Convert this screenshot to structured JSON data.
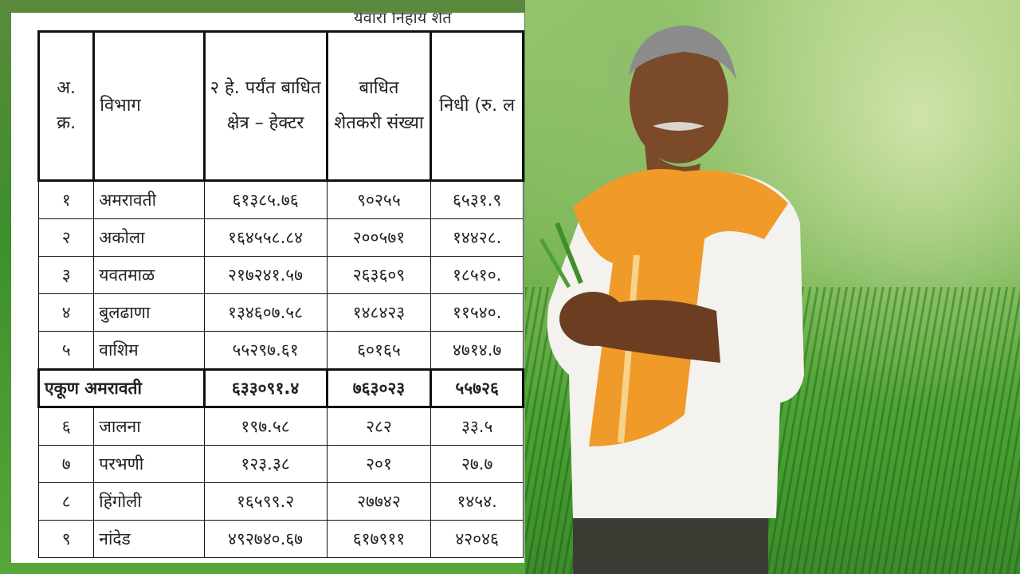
{
  "doc": {
    "top_text": "र्यवारा निहाय शेत"
  },
  "table": {
    "headers": {
      "sr": "अ. क्र.",
      "division": "विभाग",
      "area": "२ हे. पर्यंत बाधित क्षेत्र – हेक्टर",
      "farmers": "बाधित शेतकरी संख्या",
      "fund": "निधी (रु. ल"
    },
    "rows_a": [
      {
        "sr": "१",
        "division": "अमरावती",
        "area": "६१३८५.७६",
        "farmers": "९०२५५",
        "fund": "६५३१.९"
      },
      {
        "sr": "२",
        "division": "अकोला",
        "area": "१६४५५८.८४",
        "farmers": "२००५७१",
        "fund": "१४४२८."
      },
      {
        "sr": "३",
        "division": "यवतमाळ",
        "area": "२१७२४१.५७",
        "farmers": "२६३६०९",
        "fund": "१८५१०."
      },
      {
        "sr": "४",
        "division": "बुलढाणा",
        "area": "१३४६०७.५८",
        "farmers": "१४८४२३",
        "fund": "११५४०."
      },
      {
        "sr": "५",
        "division": "वाशिम",
        "area": "५५२९७.६१",
        "farmers": "६०१६५",
        "fund": "४७१४.७"
      }
    ],
    "total": {
      "label": "एकूण अमरावती",
      "area": "६३३०९१.४",
      "farmers": "७६३०२३",
      "fund": "५५७२६"
    },
    "rows_b": [
      {
        "sr": "६",
        "division": "जालना",
        "area": "१९७.५८",
        "farmers": "२८२",
        "fund": "३३.५"
      },
      {
        "sr": "७",
        "division": "परभणी",
        "area": "१२३.३८",
        "farmers": "२०१",
        "fund": "२७.७"
      },
      {
        "sr": "८",
        "division": "हिंगोली",
        "area": "१६५९९.२",
        "farmers": "२७७४२",
        "fund": "१४५४."
      },
      {
        "sr": "९",
        "division": "नांदेड",
        "area": "४९२७४०.६७",
        "farmers": "६१७९११",
        "fund": "४२०४६"
      }
    ]
  },
  "colors": {
    "scarf": "#f09a2a",
    "shirt": "#f4f2ee",
    "skin": "#6b3e22",
    "field_green": "#4fa034"
  }
}
